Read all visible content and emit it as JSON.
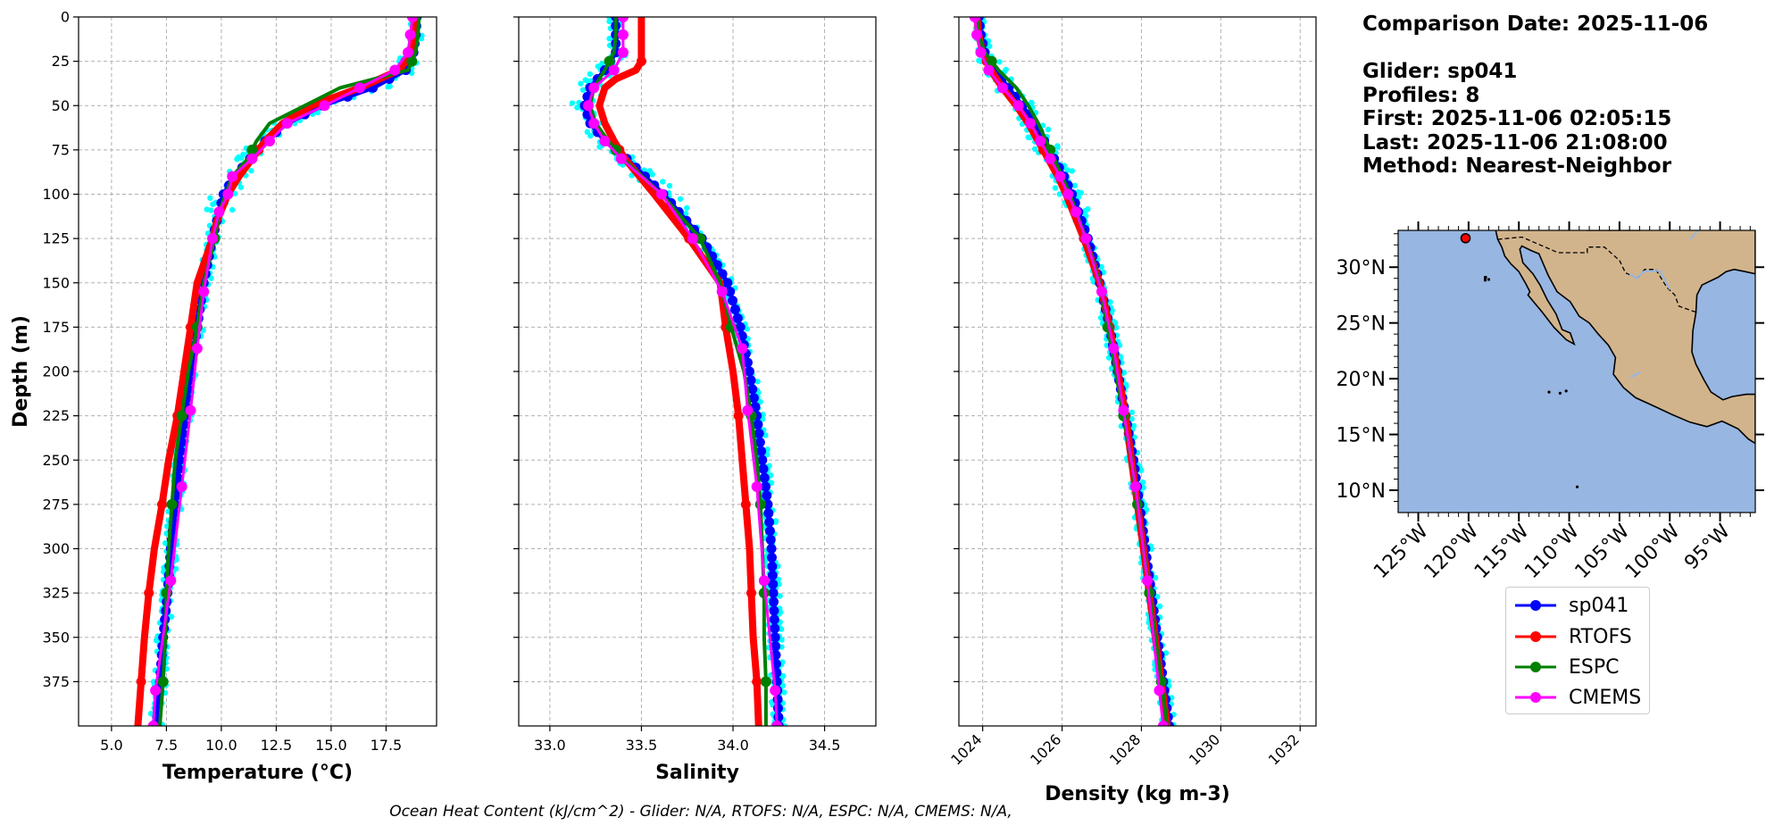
{
  "chart_data": [
    {
      "type": "line",
      "orientation": "profile (x = variable, y = depth, inverted)",
      "xlabel": "Temperature (°C)",
      "ylabel": "Depth (m)",
      "xlim": [
        3.5,
        19.8
      ],
      "ylim": [
        400,
        0
      ],
      "xticks": [
        "5.0",
        "7.5",
        "10.0",
        "12.5",
        "15.0",
        "17.5"
      ],
      "yticks": [
        "0",
        "25",
        "50",
        "75",
        "100",
        "125",
        "150",
        "175",
        "200",
        "225",
        "250",
        "275",
        "300",
        "325",
        "350",
        "375"
      ],
      "grid": true,
      "series": [
        {
          "name": "sp041",
          "depth": [
            0,
            10,
            20,
            30,
            40,
            50,
            60,
            70,
            80,
            90,
            100,
            115,
            125,
            150,
            175,
            200,
            225,
            250,
            275,
            300,
            325,
            350,
            375,
            400
          ],
          "values": [
            18.9,
            18.85,
            18.75,
            18.4,
            16.9,
            14.6,
            13.0,
            12.0,
            11.3,
            10.6,
            10.1,
            9.8,
            9.6,
            9.2,
            8.9,
            8.6,
            8.35,
            8.1,
            7.9,
            7.7,
            7.55,
            7.35,
            7.2,
            7.05
          ]
        },
        {
          "name": "RTOFS",
          "depth": [
            0,
            10,
            20,
            30,
            40,
            50,
            60,
            70,
            80,
            90,
            100,
            115,
            125,
            150,
            175,
            200,
            225,
            250,
            275,
            300,
            325,
            350,
            375,
            400
          ],
          "values": [
            18.9,
            18.8,
            18.65,
            18.1,
            16.3,
            14.1,
            12.8,
            12.0,
            11.4,
            10.8,
            10.3,
            9.8,
            9.6,
            8.9,
            8.6,
            8.3,
            8.0,
            7.6,
            7.3,
            6.95,
            6.7,
            6.5,
            6.35,
            6.2
          ]
        },
        {
          "name": "ESPC",
          "depth": [
            0,
            10,
            20,
            30,
            40,
            50,
            60,
            70,
            80,
            90,
            100,
            110,
            125,
            150,
            175,
            200,
            225,
            250,
            275,
            300,
            325,
            350,
            375,
            400
          ],
          "values": [
            19.0,
            18.95,
            18.85,
            18.5,
            15.4,
            13.8,
            12.2,
            11.6,
            11.2,
            10.5,
            10.2,
            9.9,
            9.7,
            9.2,
            8.9,
            8.5,
            8.2,
            7.9,
            7.75,
            7.6,
            7.5,
            7.45,
            7.35,
            7.2
          ]
        },
        {
          "name": "CMEMS",
          "depth": [
            0,
            10,
            20,
            30,
            40,
            50,
            60,
            70,
            80,
            90,
            100,
            110,
            125,
            155,
            187,
            222,
            265,
            318,
            380,
            400
          ],
          "values": [
            18.7,
            18.6,
            18.5,
            17.9,
            16.3,
            14.7,
            13.0,
            12.2,
            11.4,
            10.5,
            10.3,
            9.9,
            9.6,
            9.2,
            8.9,
            8.6,
            8.2,
            7.7,
            7.0,
            6.9
          ]
        }
      ]
    },
    {
      "type": "line",
      "orientation": "profile (x = variable, y = depth, inverted)",
      "xlabel": "Salinity",
      "ylabel": "",
      "xlim": [
        32.83,
        34.78
      ],
      "ylim": [
        400,
        0
      ],
      "xticks": [
        "33.0",
        "33.5",
        "34.0",
        "34.5"
      ],
      "grid": true,
      "series": [
        {
          "name": "sp041",
          "depth": [
            0,
            10,
            20,
            30,
            40,
            50,
            60,
            70,
            80,
            90,
            100,
            125,
            150,
            175,
            200,
            225,
            250,
            275,
            300,
            325,
            350,
            375,
            400
          ],
          "values": [
            33.36,
            33.36,
            33.36,
            33.3,
            33.22,
            33.19,
            33.22,
            33.3,
            33.42,
            33.52,
            33.62,
            33.83,
            33.97,
            34.04,
            34.09,
            34.13,
            34.16,
            34.19,
            34.21,
            34.22,
            34.23,
            34.24,
            34.25
          ]
        },
        {
          "name": "RTOFS",
          "depth": [
            0,
            10,
            20,
            25,
            30,
            35,
            40,
            50,
            60,
            70,
            80,
            100,
            125,
            150,
            175,
            200,
            225,
            250,
            275,
            300,
            325,
            350,
            375,
            400
          ],
          "values": [
            33.5,
            33.5,
            33.5,
            33.5,
            33.47,
            33.36,
            33.3,
            33.27,
            33.3,
            33.35,
            33.41,
            33.57,
            33.76,
            33.93,
            33.96,
            34.0,
            34.03,
            34.05,
            34.07,
            34.09,
            34.1,
            34.11,
            34.13,
            34.14
          ]
        },
        {
          "name": "ESPC",
          "depth": [
            0,
            10,
            20,
            30,
            40,
            50,
            60,
            70,
            80,
            100,
            125,
            150,
            175,
            200,
            225,
            250,
            275,
            300,
            325,
            350,
            375,
            400
          ],
          "values": [
            33.36,
            33.36,
            33.35,
            33.3,
            33.24,
            33.22,
            33.25,
            33.32,
            33.4,
            33.61,
            33.82,
            33.93,
            33.99,
            34.06,
            34.1,
            34.13,
            34.15,
            34.16,
            34.17,
            34.17,
            34.18,
            34.18
          ]
        },
        {
          "name": "CMEMS",
          "depth": [
            0,
            10,
            20,
            30,
            40,
            50,
            60,
            70,
            80,
            100,
            125,
            155,
            187,
            222,
            265,
            318,
            380,
            400
          ],
          "values": [
            33.4,
            33.4,
            33.4,
            33.35,
            33.24,
            33.21,
            33.24,
            33.3,
            33.39,
            33.61,
            33.78,
            33.94,
            34.05,
            34.08,
            34.13,
            34.17,
            34.23,
            34.24
          ]
        }
      ]
    },
    {
      "type": "line",
      "orientation": "profile (x = variable, y = depth, inverted)",
      "xlabel": "Density (kg m-3)",
      "ylabel": "",
      "xlim": [
        1023.4,
        1032.4
      ],
      "ylim": [
        400,
        0
      ],
      "xticks": [
        "1024",
        "1026",
        "1028",
        "1030",
        "1032"
      ],
      "grid": true,
      "series": [
        {
          "name": "sp041",
          "depth": [
            0,
            10,
            20,
            30,
            40,
            50,
            60,
            70,
            80,
            90,
            100,
            125,
            150,
            175,
            200,
            225,
            250,
            275,
            300,
            325,
            350,
            375,
            400
          ],
          "values": [
            1023.9,
            1023.95,
            1024.05,
            1024.3,
            1024.65,
            1025.0,
            1025.3,
            1025.55,
            1025.8,
            1026.05,
            1026.25,
            1026.65,
            1026.95,
            1027.2,
            1027.4,
            1027.6,
            1027.8,
            1027.95,
            1028.1,
            1028.25,
            1028.4,
            1028.55,
            1028.7
          ]
        },
        {
          "name": "RTOFS",
          "depth": [
            0,
            10,
            20,
            30,
            40,
            50,
            60,
            70,
            80,
            90,
            100,
            125,
            150,
            175,
            200,
            225,
            250,
            275,
            300,
            325,
            350,
            375,
            400
          ],
          "values": [
            1023.85,
            1023.9,
            1024.0,
            1024.2,
            1024.5,
            1024.85,
            1025.15,
            1025.4,
            1025.65,
            1025.9,
            1026.1,
            1026.55,
            1026.95,
            1027.2,
            1027.4,
            1027.6,
            1027.75,
            1027.9,
            1028.05,
            1028.2,
            1028.35,
            1028.5,
            1028.65
          ]
        },
        {
          "name": "ESPC",
          "depth": [
            0,
            10,
            20,
            30,
            40,
            50,
            60,
            70,
            80,
            90,
            100,
            125,
            150,
            175,
            200,
            225,
            250,
            275,
            300,
            325,
            350,
            375,
            400
          ],
          "values": [
            1023.85,
            1023.9,
            1024.05,
            1024.4,
            1024.85,
            1025.15,
            1025.4,
            1025.6,
            1025.8,
            1026.0,
            1026.2,
            1026.6,
            1026.95,
            1027.15,
            1027.35,
            1027.55,
            1027.75,
            1027.9,
            1028.05,
            1028.2,
            1028.35,
            1028.5,
            1028.65
          ]
        },
        {
          "name": "CMEMS",
          "depth": [
            0,
            10,
            20,
            30,
            40,
            50,
            60,
            70,
            80,
            90,
            100,
            110,
            125,
            155,
            187,
            222,
            265,
            318,
            380,
            400
          ],
          "values": [
            1023.8,
            1023.85,
            1023.95,
            1024.15,
            1024.5,
            1024.9,
            1025.2,
            1025.45,
            1025.7,
            1025.95,
            1026.15,
            1026.35,
            1026.6,
            1027.0,
            1027.3,
            1027.55,
            1027.85,
            1028.15,
            1028.45,
            1028.55
          ]
        }
      ]
    }
  ],
  "raw_profiles": {
    "name": "glider raw profiles",
    "color": "#00ffff"
  },
  "series_colors": {
    "sp041": "#0000ff",
    "RTOFS": "#ff0000",
    "ESPC": "#008000",
    "CMEMS": "#ff00ff"
  },
  "info": {
    "comparison_date": "Comparison Date: 2025-11-06",
    "glider": "Glider: sp041",
    "profiles": "Profiles: 8",
    "first": "First: 2025-11-06 02:05:15",
    "last": "Last: 2025-11-06 21:08:00",
    "method": "Method: Nearest-Neighbor"
  },
  "map": {
    "lat_labels": [
      "30°N",
      "25°N",
      "20°N",
      "15°N",
      "10°N"
    ],
    "lon_labels": [
      "125°W",
      "120°W",
      "115°W",
      "110°W",
      "105°W",
      "100°W",
      "95°W"
    ],
    "ocean_color": "#97b6e1",
    "land_color": "#d2b48c",
    "glider_marker": {
      "lon": -120.3,
      "lat": 32.6
    }
  },
  "legend": {
    "items": [
      {
        "label": "sp041",
        "color": "#0000ff"
      },
      {
        "label": "RTOFS",
        "color": "#ff0000"
      },
      {
        "label": "ESPC",
        "color": "#008000"
      },
      {
        "label": "CMEMS",
        "color": "#ff00ff"
      }
    ]
  },
  "footer": "Ocean Heat Content (kJ/cm^2) - Glider: N/A,  RTOFS: N/A,  ESPC: N/A,  CMEMS: N/A,"
}
